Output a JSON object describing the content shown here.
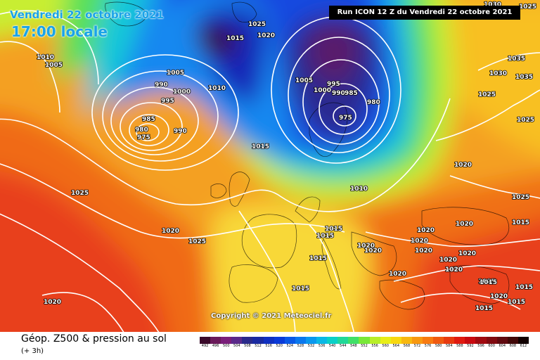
{
  "header": {
    "date": "Vendredi 22 octobre 2021",
    "local_time": "17:00 locale",
    "run": "Run ICON 12 Z du Vendredi 22 octobre 2021"
  },
  "copyright": "Copyright © 2021 Meteociel.fr",
  "legend": {
    "title": "Géop. Z500 & pression au sol",
    "subtitle": "(+ 3h)",
    "scale_values": [
      "492",
      "496",
      "500",
      "504",
      "508",
      "512",
      "516",
      "520",
      "524",
      "528",
      "532",
      "536",
      "540",
      "544",
      "548",
      "552",
      "556",
      "560",
      "564",
      "568",
      "572",
      "576",
      "580",
      "584",
      "588",
      "592",
      "596",
      "600",
      "604",
      "608",
      "612"
    ],
    "scale_colors": [
      "#3a0a2a",
      "#6a1a5a",
      "#7a1f7a",
      "#5a2a8a",
      "#2a2a8a",
      "#1a2aa0",
      "#1030c0",
      "#0a3ad8",
      "#0a58e6",
      "#0a78ee",
      "#0a98ee",
      "#0ab8e6",
      "#0ad0c8",
      "#20d898",
      "#40e068",
      "#78e838",
      "#b8ee28",
      "#e8ee18",
      "#f8d810",
      "#f8b810",
      "#f89810",
      "#f87a10",
      "#f05a10",
      "#e83a10",
      "#e01a10",
      "#c80a10",
      "#a00a10",
      "#800a10",
      "#600a10",
      "#400808",
      "#100000"
    ]
  },
  "isobars": [
    {
      "value": "1010",
      "cls": "lbl-1010-a"
    },
    {
      "value": "1005",
      "cls": "lbl-1005-a"
    },
    {
      "value": "1025",
      "cls": "lbl-1025-a"
    },
    {
      "value": "1020",
      "cls": "lbl-1020-a"
    },
    {
      "value": "1015",
      "cls": "lbl-1015-a"
    },
    {
      "value": "1005",
      "cls": "lbl-1005-b"
    },
    {
      "value": "990",
      "cls": "lbl-990-a"
    },
    {
      "value": "1000",
      "cls": "lbl-1000-a"
    },
    {
      "value": "995",
      "cls": "lbl-995-a"
    },
    {
      "value": "985",
      "cls": "lbl-985-a"
    },
    {
      "value": "980",
      "cls": "lbl-980-a"
    },
    {
      "value": "975",
      "cls": "lbl-975-a"
    },
    {
      "value": "990",
      "cls": "lbl-990-b"
    },
    {
      "value": "1010",
      "cls": "lbl-1010-b"
    },
    {
      "value": "1015",
      "cls": "lbl-1015-b"
    },
    {
      "value": "1025",
      "cls": "lbl-1025-b"
    },
    {
      "value": "1020",
      "cls": "lbl-1020-b"
    },
    {
      "value": "1025",
      "cls": "lbl-1025-c"
    },
    {
      "value": "1020",
      "cls": "lbl-1020-c"
    },
    {
      "value": "1005",
      "cls": "lbl-1005-c"
    },
    {
      "value": "995",
      "cls": "lbl-995-b"
    },
    {
      "value": "1000",
      "cls": "lbl-1000-b"
    },
    {
      "value": "990",
      "cls": "lbl-990-c"
    },
    {
      "value": "985",
      "cls": "lbl-985-b"
    },
    {
      "value": "980",
      "cls": "lbl-980-b"
    },
    {
      "value": "975",
      "cls": "lbl-975-b"
    },
    {
      "value": "1010",
      "cls": "lbl-1010-c"
    },
    {
      "value": "1015",
      "cls": "lbl-1015-c"
    },
    {
      "value": "1015",
      "cls": "lbl-1015-d"
    },
    {
      "value": "1020",
      "cls": "lbl-1020-d"
    },
    {
      "value": "1020",
      "cls": "lbl-1020-e"
    },
    {
      "value": "1015",
      "cls": "lbl-1015-e"
    },
    {
      "value": "1020",
      "cls": "lbl-1020-f"
    },
    {
      "value": "1020",
      "cls": "lbl-1020-g"
    },
    {
      "value": "1020",
      "cls": "lbl-1020-h"
    },
    {
      "value": "1020",
      "cls": "lbl-1020-i"
    },
    {
      "value": "1015",
      "cls": "lbl-1015-f"
    },
    {
      "value": "1020",
      "cls": "lbl-1020-j"
    },
    {
      "value": "1020",
      "cls": "lbl-1020-k"
    },
    {
      "value": "1015",
      "cls": "lbl-1015-g"
    },
    {
      "value": "1015",
      "cls": "lbl-1015-h"
    },
    {
      "value": "1015",
      "cls": "lbl-1015-i"
    },
    {
      "value": "1015",
      "cls": "lbl-1015-j"
    },
    {
      "value": "1035",
      "cls": "lbl-1035-a"
    },
    {
      "value": "1035",
      "cls": "lbl-1035-b"
    },
    {
      "value": "1030",
      "cls": "lbl-1030-a"
    },
    {
      "value": "1025",
      "cls": "lbl-1025-d"
    },
    {
      "value": "1020",
      "cls": "lbl-1020-l"
    },
    {
      "value": "1025",
      "cls": "lbl-1025-e"
    },
    {
      "value": "1015",
      "cls": "lbl-1015-k"
    },
    {
      "value": "1020",
      "cls": "lbl-1020-m"
    },
    {
      "value": "1020",
      "cls": "lbl-1020-n"
    },
    {
      "value": "1015",
      "cls": "lbl-1015-l"
    },
    {
      "value": "1025",
      "cls": "lbl-1025-f"
    },
    {
      "value": "1020",
      "cls": "lbl-1020-o"
    },
    {
      "value": "1030",
      "cls": "lbl-1030-b"
    },
    {
      "value": "1025",
      "cls": "lbl-1025-g"
    }
  ]
}
